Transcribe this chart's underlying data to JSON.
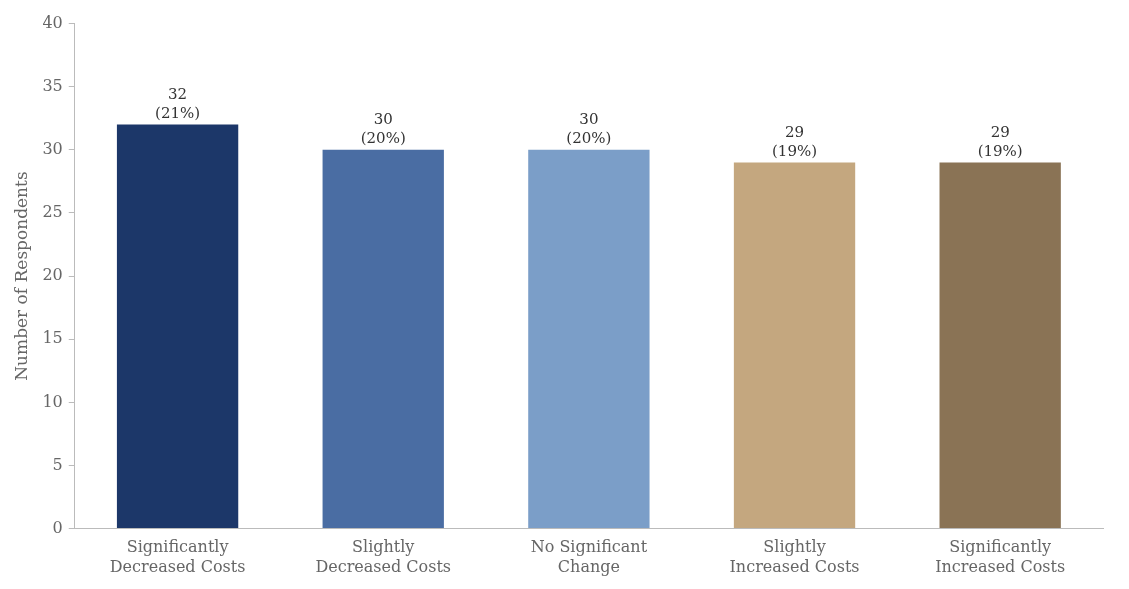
{
  "chart_data": {
    "type": "bar",
    "ylabel": "Number of Respondents",
    "categories": [
      "Significantly\nDecreased Costs",
      "Slightly\nDecreased Costs",
      "No Significant\nChange",
      "Slightly\nIncreased Costs",
      "Significantly\nIncreased Costs"
    ],
    "values": [
      32,
      30,
      30,
      29,
      29
    ],
    "colors": [
      "#1c3769",
      "#4a6da3",
      "#7b9ec8",
      "#c4a77f",
      "#8a7355"
    ],
    "value_labels": [
      "32\n(21%)",
      "30\n(20%)",
      "30\n(20%)",
      "29\n(19%)",
      "29\n(19%)"
    ],
    "ylim": [
      0,
      40
    ],
    "yticks": [
      0,
      5,
      10,
      15,
      20,
      25,
      30,
      35,
      40
    ],
    "grid": false,
    "legend": false
  }
}
